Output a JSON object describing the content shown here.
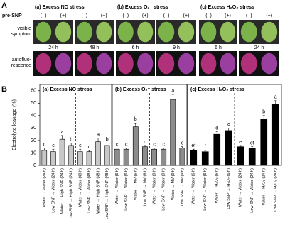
{
  "panel_a": {
    "label": "A",
    "pre_snp": "pre-SNP",
    "signs": [
      "(–)",
      "(+)"
    ],
    "rows": [
      [
        "visible",
        "symptom"
      ],
      [
        "autofluo-",
        "rescence"
      ]
    ],
    "columns": [
      {
        "title": "(a) Excess NO stress",
        "times": [
          "24 h",
          "48 h"
        ]
      },
      {
        "title": "(b) Excess O₂⁻ stress",
        "times": [
          "6 h",
          "9 h"
        ]
      },
      {
        "title": "(c) Excess H₂O₂ stress",
        "times": [
          "6 h",
          "24 h"
        ]
      }
    ]
  },
  "panel_b_label": "B",
  "chart_data": [
    {
      "type": "bar",
      "title": "(a) Excess NO stress",
      "ylabel": "Electrolyte leakage (%)",
      "color": "#c8c8c8",
      "categories": [
        "Water → Water (24 h)",
        "Low SNP → Water (24 h)",
        "Water → High SNP (24 h)",
        "Low SNP → High SNP (24 h)",
        "Water → Water (48 h)",
        "Low SNP → Water (48 h)",
        "Water → High SNP (48 h)",
        "Low SNP → High SNP (48 h)"
      ],
      "values": [
        12,
        11,
        21,
        16,
        11,
        11,
        19,
        16
      ],
      "errors": [
        2,
        2,
        3,
        2,
        2,
        1,
        3,
        2
      ],
      "letters": [
        "c",
        "c",
        "a",
        "b",
        "c",
        "c",
        "a",
        "b"
      ],
      "ylim": [
        0,
        65
      ],
      "yticks": [
        0,
        10,
        20,
        30,
        40,
        50,
        60
      ]
    },
    {
      "type": "bar",
      "title": "(b) Excess O₂⁻ stress",
      "color": "#8c8c8c",
      "categories": [
        "Water → Water (6 h)",
        "Low SNP → Water (6 h)",
        "Water → MV (6 h)",
        "Low SNP → MV (6 h)",
        "Water → Water (9 h)",
        "Low SNP → Water (9 h)",
        "Water → MV (9 h)",
        "Low SNP → MV (9 h)"
      ],
      "values": [
        13,
        13,
        31,
        15,
        13,
        13,
        53,
        14
      ],
      "errors": [
        1,
        1,
        3,
        1,
        1,
        1,
        4,
        1
      ],
      "letters": [
        "c",
        "c",
        "b",
        "c",
        "c",
        "c",
        "a",
        "c"
      ],
      "ylim": [
        0,
        65
      ]
    },
    {
      "type": "bar",
      "title": "(c) Excess H₂O₂ stress",
      "color": "#000000",
      "categories": [
        "Water → Water (6 h)",
        "Low SNP → Water (6 h)",
        "Water → H₂O₂ (6 h)",
        "Low SNP → H₂O₂ (6 h)",
        "Water → Water (24 h)",
        "Low SNP → Water (24 h)",
        "Water → H₂O₂ (24 h)",
        "Low SNP → H₂O₂ (24 h)"
      ],
      "values": [
        12,
        11,
        25,
        28,
        15,
        14,
        37,
        49
      ],
      "errors": [
        1,
        1,
        2,
        2,
        1,
        1,
        3,
        3
      ],
      "letters": [
        "ef",
        "f",
        "d",
        "c",
        "e",
        "ef",
        "b",
        "a"
      ],
      "ylim": [
        0,
        65
      ]
    }
  ]
}
